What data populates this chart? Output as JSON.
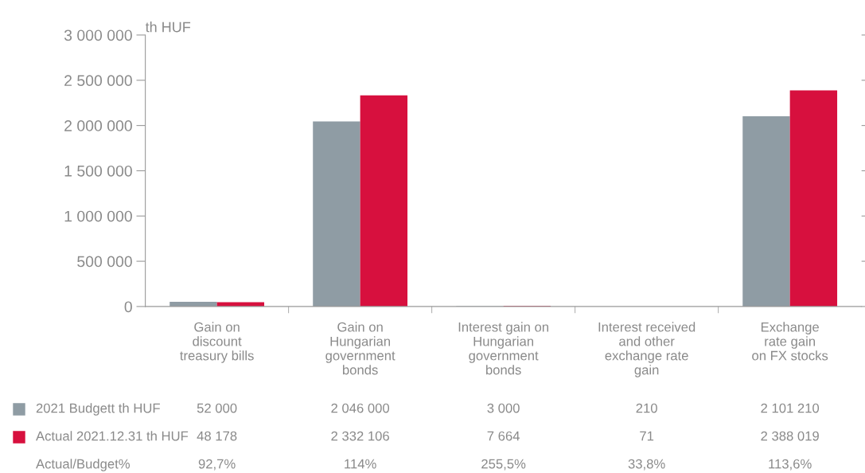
{
  "chart_data": {
    "type": "bar",
    "ylabel": "th HUF",
    "categories": [
      "Gain on\ndiscount\ntreasury bills",
      "Gain on\nHungarian\ngovernment\nbonds",
      "Interest gain on\nHungarian\ngovernment\nbonds",
      "Interest received\nand other\nexchange rate\ngain",
      "Exchange\nrate gain\non FX stocks"
    ],
    "series": [
      {
        "name": "2021 Budgett th HUF",
        "color": "#8f9ca4",
        "values": [
          52000,
          2046000,
          3000,
          210,
          2101210
        ],
        "value_labels": [
          "52 000",
          "2 046 000",
          "3 000",
          "210",
          "2 101 210"
        ]
      },
      {
        "name": "Actual 2021.12.31 th HUF",
        "color": "#d7103e",
        "values": [
          48178,
          2332106,
          7664,
          71,
          2388019
        ],
        "value_labels": [
          "48 178",
          "2 332 106",
          "7 664",
          "71",
          "2 388 019"
        ]
      }
    ],
    "ylim": [
      0,
      3000000
    ],
    "yticks": [
      {
        "value": 0,
        "label": "0"
      },
      {
        "value": 500000,
        "label": "500 000"
      },
      {
        "value": 1000000,
        "label": "1 000 000"
      },
      {
        "value": 1500000,
        "label": "1 500 000"
      },
      {
        "value": 2000000,
        "label": "2 000 000"
      },
      {
        "value": 2500000,
        "label": "2 500 000"
      },
      {
        "value": 3000000,
        "label": "3 000 000"
      }
    ],
    "grid": false,
    "legend": "bottom",
    "annotations": [
      "Actual/Budget%",
      "92,7%",
      "114%",
      "255,5%",
      "33,8%",
      "113,6%"
    ]
  }
}
